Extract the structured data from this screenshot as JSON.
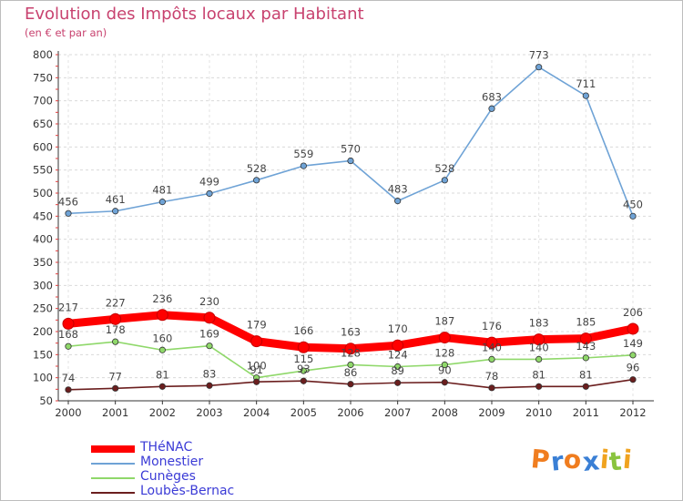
{
  "title": "Evolution des Impôts locaux par Habitant",
  "subtitle": "(en € et par an)",
  "logo": {
    "letters": [
      "P",
      "r",
      "o",
      "x",
      "i",
      "t",
      "i"
    ],
    "colors": [
      "#f07d1f",
      "#3a7fd5",
      "#f07d1f",
      "#3a7fd5",
      "#f0a31f",
      "#8ac43f",
      "#f0a31f"
    ]
  },
  "chart_data": {
    "type": "line",
    "title": "Evolution des Impôts locaux par Habitant",
    "xlabel": "",
    "ylabel": "(en € et par an)",
    "ylim": [
      50,
      800
    ],
    "yticks": [
      50,
      100,
      150,
      200,
      250,
      300,
      350,
      400,
      450,
      500,
      550,
      600,
      650,
      700,
      750,
      800
    ],
    "x": [
      "2000",
      "2001",
      "2002",
      "2003",
      "2004",
      "2005",
      "2006",
      "2007",
      "2008",
      "2009",
      "2010",
      "2011",
      "2012"
    ],
    "legend_position": "bottom-left",
    "series": [
      {
        "name": "THéNAC",
        "color": "#ff0000",
        "values": [
          217,
          227,
          236,
          230,
          179,
          166,
          163,
          170,
          187,
          176,
          183,
          185,
          206
        ]
      },
      {
        "name": "Monestier",
        "color": "#6fa3d6",
        "values": [
          456,
          461,
          481,
          499,
          528,
          559,
          570,
          483,
          528,
          683,
          773,
          711,
          450
        ]
      },
      {
        "name": "Cunèges",
        "color": "#8fd86a",
        "values": [
          168,
          178,
          160,
          169,
          100,
          115,
          128,
          124,
          128,
          140,
          140,
          143,
          149
        ]
      },
      {
        "name": "Loubès-Bernac",
        "color": "#6b1e1e",
        "values": [
          74,
          77,
          81,
          83,
          91,
          93,
          86,
          89,
          90,
          78,
          81,
          81,
          96
        ]
      }
    ]
  }
}
